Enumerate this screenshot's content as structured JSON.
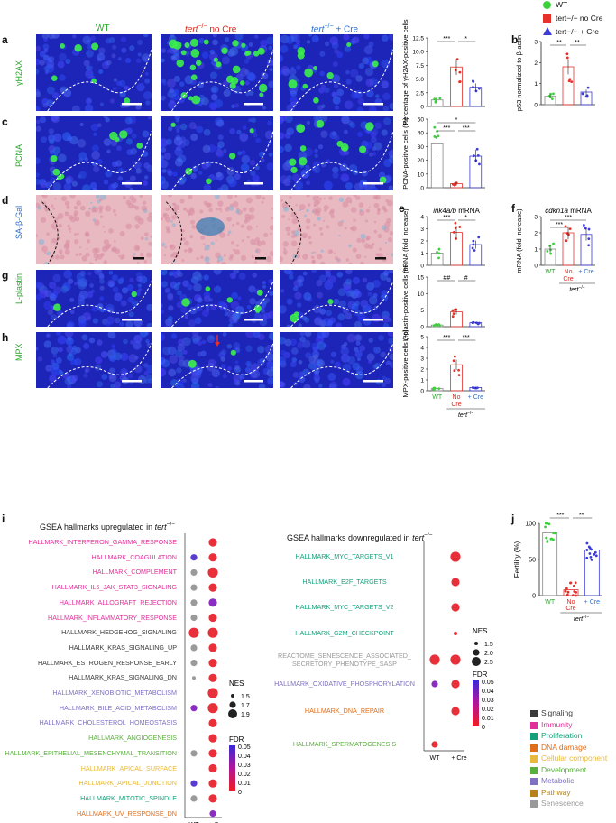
{
  "top_legend": [
    {
      "label": "WT",
      "color": "#3cd03c",
      "shape": "circle"
    },
    {
      "label": "tert−/− no Cre",
      "color": "#e8302a",
      "shape": "square"
    },
    {
      "label": "tert−/− + Cre",
      "color": "#3b3bd8",
      "shape": "triangle"
    }
  ],
  "column_headers": {
    "wt": "WT",
    "no_cre_italic": "tert",
    "no_cre_sup": "−/−",
    "no_cre_rest": " no Cre",
    "cre_italic": "tert",
    "cre_sup": "−/−",
    "cre_rest": " + Cre"
  },
  "rows": [
    {
      "letter": "a",
      "stain": "γH2AX"
    },
    {
      "letter": "c",
      "stain": "PCNA"
    },
    {
      "letter": "d",
      "stain": "SA-β-Gal"
    },
    {
      "letter": "g",
      "stain": "L-plastin"
    },
    {
      "letter": "h",
      "stain": "MPX"
    }
  ],
  "panel_letters": {
    "a": "a",
    "b": "b",
    "c": "c",
    "d": "d",
    "e": "e",
    "f": "f",
    "g": "g",
    "h": "h",
    "i": "i",
    "j": "j"
  },
  "bar_panels": {
    "a": {
      "ylabel": "Percentage of γH2AX-positive cells",
      "yticks": [
        "0",
        "2.5",
        "5.0",
        "7.5",
        "10.0",
        "12.5"
      ],
      "sig": [
        "***",
        "*"
      ],
      "means": [
        1.2,
        7.2,
        3.5
      ]
    },
    "b": {
      "ylabel": "p53 normalized to β-actin",
      "yticks": [
        "0",
        "1",
        "2",
        "3"
      ],
      "sig": [
        "**",
        "**"
      ],
      "means": [
        0.4,
        1.8,
        0.6
      ]
    },
    "c": {
      "ylabel": "PCNA-positive cells (%)",
      "yticks": [
        "0",
        "10",
        "20",
        "30",
        "40",
        "50"
      ],
      "sig": [
        "*",
        "***",
        "***"
      ],
      "means": [
        32,
        3,
        23
      ]
    },
    "e": {
      "title_italic": "ink4a/b",
      "title_rest": " mRNA",
      "ylabel": "mRNA (fold increase)",
      "yticks": [
        "0",
        "1",
        "2",
        "3",
        "4"
      ],
      "sig": [
        "***",
        "*"
      ],
      "means": [
        1.0,
        2.7,
        1.7
      ]
    },
    "f": {
      "title_italic": "cdkn1a",
      "title_rest": " mRNA",
      "ylabel": "mRNA (fold increase)",
      "yticks": [
        "0",
        "1",
        "2",
        "3"
      ],
      "sig": [
        "***",
        "***"
      ],
      "means": [
        1.0,
        2.0,
        1.9
      ]
    },
    "g": {
      "ylabel": "L-plastin-positive cells (%)",
      "yticks": [
        "0",
        "5",
        "10",
        "15"
      ],
      "sig": [
        "##",
        "#"
      ],
      "means": [
        0.5,
        4.5,
        1.2
      ]
    },
    "h": {
      "ylabel": "MPX-positive cells (%)",
      "yticks": [
        "0",
        "1",
        "2",
        "3",
        "4",
        "5"
      ],
      "sig": [
        "***",
        "***"
      ],
      "means": [
        0.2,
        2.4,
        0.3
      ]
    }
  },
  "xcats": {
    "wt": "WT",
    "nocre1": "No",
    "nocre2": "Cre",
    "cre": "+ Cre",
    "group": "tert",
    "group_sup": "−/−"
  },
  "panel_i": {
    "title_up": "GSEA hallmarks upregulated in ",
    "title_up_it": "tert",
    "title_up_sup": "−/−",
    "title_down": "GSEA hallmarks downregulated in ",
    "title_down_it": "tert",
    "title_down_sup": "−/−",
    "up_terms": [
      {
        "name": "HALLMARK_INTERFERON_GAMMA_RESPONSE",
        "cat": "Immunity",
        "wt": null,
        "cre": "red-l"
      },
      {
        "name": "HALLMARK_COAGULATION",
        "cat": "Immunity",
        "wt": "blue-m",
        "cre": "red-l"
      },
      {
        "name": "HALLMARK_COMPLEMENT",
        "cat": "Immunity",
        "wt": "grey-m",
        "cre": "red-xl"
      },
      {
        "name": "HALLMARK_IL6_JAK_STAT3_SIGNALING",
        "cat": "Immunity",
        "wt": "grey-m",
        "cre": "red-l"
      },
      {
        "name": "HALLMARK_ALLOGRAFT_REJECTION",
        "cat": "Immunity",
        "wt": "grey-m",
        "cre": "purple-l"
      },
      {
        "name": "HALLMARK_INFLAMMATORY_RESPONSE",
        "cat": "Immunity",
        "wt": "grey-m",
        "cre": "red-l"
      },
      {
        "name": "HALLMARK_HEDGEHOG_SIGNALING",
        "cat": "Signaling",
        "wt": "red-xl",
        "cre": "red-xl"
      },
      {
        "name": "HALLMARK_KRAS_SIGNALING_UP",
        "cat": "Signaling",
        "wt": "grey-m",
        "cre": "red-l"
      },
      {
        "name": "HALLMARK_ESTROGEN_RESPONSE_EARLY",
        "cat": "Signaling",
        "wt": "grey-m",
        "cre": "red-l"
      },
      {
        "name": "HALLMARK_KRAS_SIGNALING_DN",
        "cat": "Signaling",
        "wt": "grey-s",
        "cre": "red-l"
      },
      {
        "name": "HALLMARK_XENOBIOTIC_METABOLISM",
        "cat": "Metabolic",
        "wt": null,
        "cre": "red-xl"
      },
      {
        "name": "HALLMARK_BILE_ACID_METABOLISM",
        "cat": "Metabolic",
        "wt": "purple-m",
        "cre": "red-xl"
      },
      {
        "name": "HALLMARK_CHOLESTEROL_HOMEOSTASIS",
        "cat": "Metabolic",
        "wt": null,
        "cre": "red-l"
      },
      {
        "name": "HALLMARK_ANGIOGENESIS",
        "cat": "Development",
        "wt": null,
        "cre": "red-l"
      },
      {
        "name": "HALLMARK_EPITHELIAL_MESENCHYMAL_TRANSITION",
        "cat": "Development",
        "wt": "grey-m",
        "cre": "red-l"
      },
      {
        "name": "HALLMARK_APICAL_SURFACE",
        "cat": "Cellular component",
        "wt": null,
        "cre": "red-l"
      },
      {
        "name": "HALLMARK_APICAL_JUNCTION",
        "cat": "Cellular component",
        "wt": "blue-m",
        "cre": "red-l"
      },
      {
        "name": "HALLMARK_MITOTIC_SPINDLE",
        "cat": "Proliferation",
        "wt": "grey-m",
        "cre": "red-l"
      },
      {
        "name": "HALLMARK_UV_RESPONSE_DN",
        "cat": "DNA damage",
        "wt": null,
        "cre": "purple-m"
      }
    ],
    "down_terms": [
      {
        "name": "HALLMARK_MYC_TARGETS_V1",
        "cat": "Proliferation",
        "wt": null,
        "cre": "red-xl"
      },
      {
        "name": "HALLMARK_E2F_TARGETS",
        "cat": "Proliferation",
        "wt": null,
        "cre": "red-l"
      },
      {
        "name": "HALLMARK_MYC_TARGETS_V2",
        "cat": "Proliferation",
        "wt": null,
        "cre": "red-l"
      },
      {
        "name": "HALLMARK_G2M_CHECKPOINT",
        "cat": "Proliferation",
        "wt": null,
        "cre": "red-s"
      },
      {
        "name": "REACTOME_SENESCENCE_ASSOCIATED_",
        "name2": "SECRETORY_PHENOTYPE_SASP",
        "cat": "Senescence",
        "wt": "red-xl",
        "cre": "red-xl"
      },
      {
        "name": "HALLMARK_OXIDATIVE_PHOSPHORYLATION",
        "cat": "Metabolic",
        "wt": "purple-m",
        "cre": "red-l"
      },
      {
        "name": "HALLMARK_DNA_REPAIR",
        "cat": "DNA damage",
        "wt": null,
        "cre": "red-l"
      },
      {
        "name": "HALLMARK_SPERMATOGENESIS",
        "cat": "Development",
        "wt": "red-m",
        "cre": null
      }
    ],
    "x_labels": [
      "WT",
      "+ Cre"
    ],
    "nes_title": "NES",
    "nes_up": [
      "1.5",
      "1.7",
      "1.9"
    ],
    "nes_down": [
      "1.5",
      "2.0",
      "2.5"
    ],
    "fdr_title": "FDR",
    "fdr_ticks": [
      "0.05",
      "0.04",
      "0.03",
      "0.02",
      "0.01",
      "0"
    ]
  },
  "category_legend": [
    {
      "label": "Signaling",
      "color": "#3a3a3a"
    },
    {
      "label": "Immunity",
      "color": "#e0309a"
    },
    {
      "label": "Proliferation",
      "color": "#16a07a"
    },
    {
      "label": "DNA damage",
      "color": "#e06d1a"
    },
    {
      "label": "Cellular component",
      "color": "#e8b93c"
    },
    {
      "label": "Development",
      "color": "#58b03a"
    },
    {
      "label": "Metabolic",
      "color": "#7f70c2"
    },
    {
      "label": "Pathway",
      "color": "#b8841a"
    },
    {
      "label": "Senescence",
      "color": "#9a9a9a"
    }
  ],
  "panel_j": {
    "ylabel": "Fertility (%)",
    "yticks": [
      "0",
      "50",
      "100"
    ],
    "sig": [
      "***",
      "**"
    ],
    "means": [
      87,
      8,
      63
    ]
  }
}
